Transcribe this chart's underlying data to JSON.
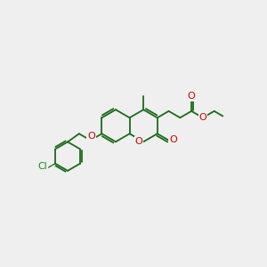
{
  "bg_color": "#efefef",
  "gc": "#1a6b1a",
  "rc": "#cc0000",
  "clc": "#1a8c1a",
  "lw": 1.3,
  "R": 0.72,
  "xlim": [
    0,
    12
  ],
  "ylim": [
    0,
    10
  ]
}
